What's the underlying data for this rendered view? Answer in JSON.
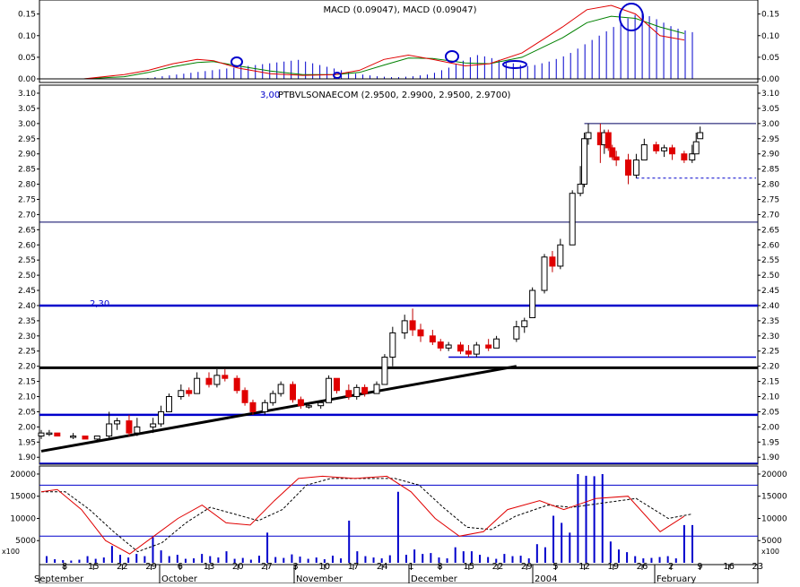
{
  "macd_panel": {
    "title": "MACD (0.09047), MACD (0.09047)",
    "axis_ticks": [
      "0.15",
      "0.10",
      "0.05",
      "0.00"
    ],
    "colors": {
      "macd_line": "#e00000",
      "signal_line": "#008000",
      "histogram": "#0000cc",
      "highlight": "#0000cc"
    }
  },
  "price_panel": {
    "title": "PTBVLSONAECOM (2.9500, 2.9900, 2.9500, 2.9700)",
    "scale_note": "3,00",
    "level_label": "2,30",
    "axis_ticks": [
      "3.10",
      "3.05",
      "3.00",
      "2.95",
      "2.90",
      "2.85",
      "2.80",
      "2.75",
      "2.70",
      "2.65",
      "2.60",
      "2.55",
      "2.50",
      "2.45",
      "2.40",
      "2.35",
      "2.30",
      "2.25",
      "2.20",
      "2.15",
      "2.10",
      "2.05",
      "2.00",
      "1.95",
      "1.90"
    ],
    "colors": {
      "up_candle": "#ffffff",
      "down_candle": "#e00000",
      "support": "#0000cc",
      "trendline": "#000000",
      "thin_line": "#000060"
    }
  },
  "stoch_panel": {
    "axis_ticks": [
      "20000",
      "15000",
      "10000",
      "5000"
    ],
    "unit_label": "x100",
    "colors": {
      "k_line": "#e00000",
      "d_line": "#000000",
      "volume": "#0000cc",
      "guide": "#0000cc"
    }
  },
  "x_axis": {
    "day_labels": [
      "8",
      "15",
      "22",
      "29",
      "6",
      "13",
      "20",
      "27",
      "3",
      "10",
      "17",
      "24",
      "1",
      "8",
      "15",
      "22",
      "29",
      "5",
      "12",
      "19",
      "26",
      "2",
      "9",
      "16",
      "23"
    ],
    "month_labels": [
      "September",
      "October",
      "November",
      "December",
      "2004",
      "February"
    ]
  },
  "chart_data": {
    "type": "candlestick",
    "title": "PTBVLSONAECOM (2.9500, 2.9900, 2.9500, 2.9700)",
    "last_ohlc": {
      "open": 2.95,
      "high": 2.99,
      "low": 2.95,
      "close": 2.97
    },
    "ylim": [
      1.88,
      3.11
    ],
    "x_range": [
      "2003-09-01",
      "2004-02-27"
    ],
    "candles": [
      {
        "date": "2003-09-01",
        "o": 1.97,
        "h": 1.99,
        "l": 1.96,
        "c": 1.98
      },
      {
        "date": "2003-09-03",
        "o": 1.98,
        "h": 1.99,
        "l": 1.97,
        "c": 1.98
      },
      {
        "date": "2003-09-05",
        "o": 1.98,
        "h": 1.98,
        "l": 1.97,
        "c": 1.97
      },
      {
        "date": "2003-09-09",
        "o": 1.97,
        "h": 1.98,
        "l": 1.96,
        "c": 1.97
      },
      {
        "date": "2003-09-12",
        "o": 1.97,
        "h": 1.97,
        "l": 1.96,
        "c": 1.96
      },
      {
        "date": "2003-09-15",
        "o": 1.96,
        "h": 1.97,
        "l": 1.95,
        "c": 1.97
      },
      {
        "date": "2003-09-18",
        "o": 1.97,
        "h": 2.05,
        "l": 1.96,
        "c": 2.01
      },
      {
        "date": "2003-09-20",
        "o": 2.01,
        "h": 2.03,
        "l": 1.99,
        "c": 2.02
      },
      {
        "date": "2003-09-23",
        "o": 2.02,
        "h": 2.04,
        "l": 1.97,
        "c": 1.98
      },
      {
        "date": "2003-09-25",
        "o": 1.98,
        "h": 2.03,
        "l": 1.97,
        "c": 2.0
      },
      {
        "date": "2003-09-29",
        "o": 2.0,
        "h": 2.03,
        "l": 1.98,
        "c": 2.01
      },
      {
        "date": "2003-10-01",
        "o": 2.01,
        "h": 2.07,
        "l": 2.0,
        "c": 2.05
      },
      {
        "date": "2003-10-03",
        "o": 2.05,
        "h": 2.11,
        "l": 2.05,
        "c": 2.1
      },
      {
        "date": "2003-10-06",
        "o": 2.1,
        "h": 2.14,
        "l": 2.09,
        "c": 2.12
      },
      {
        "date": "2003-10-08",
        "o": 2.12,
        "h": 2.13,
        "l": 2.1,
        "c": 2.11
      },
      {
        "date": "2003-10-10",
        "o": 2.11,
        "h": 2.18,
        "l": 2.11,
        "c": 2.16
      },
      {
        "date": "2003-10-13",
        "o": 2.16,
        "h": 2.18,
        "l": 2.13,
        "c": 2.14
      },
      {
        "date": "2003-10-15",
        "o": 2.14,
        "h": 2.19,
        "l": 2.13,
        "c": 2.17
      },
      {
        "date": "2003-10-17",
        "o": 2.17,
        "h": 2.19,
        "l": 2.15,
        "c": 2.16
      },
      {
        "date": "2003-10-20",
        "o": 2.16,
        "h": 2.17,
        "l": 2.11,
        "c": 2.12
      },
      {
        "date": "2003-10-22",
        "o": 2.12,
        "h": 2.13,
        "l": 2.07,
        "c": 2.08
      },
      {
        "date": "2003-10-24",
        "o": 2.08,
        "h": 2.09,
        "l": 2.04,
        "c": 2.05
      },
      {
        "date": "2003-10-27",
        "o": 2.05,
        "h": 2.09,
        "l": 2.04,
        "c": 2.08
      },
      {
        "date": "2003-10-29",
        "o": 2.08,
        "h": 2.12,
        "l": 2.07,
        "c": 2.11
      },
      {
        "date": "2003-10-31",
        "o": 2.11,
        "h": 2.15,
        "l": 2.1,
        "c": 2.14
      },
      {
        "date": "2003-11-03",
        "o": 2.14,
        "h": 2.15,
        "l": 2.08,
        "c": 2.09
      },
      {
        "date": "2003-11-05",
        "o": 2.09,
        "h": 2.1,
        "l": 2.06,
        "c": 2.07
      },
      {
        "date": "2003-11-07",
        "o": 2.07,
        "h": 2.08,
        "l": 2.06,
        "c": 2.07
      },
      {
        "date": "2003-11-10",
        "o": 2.07,
        "h": 2.08,
        "l": 2.06,
        "c": 2.08
      },
      {
        "date": "2003-11-12",
        "o": 2.08,
        "h": 2.17,
        "l": 2.08,
        "c": 2.16
      },
      {
        "date": "2003-11-14",
        "o": 2.16,
        "h": 2.16,
        "l": 2.11,
        "c": 2.12
      },
      {
        "date": "2003-11-17",
        "o": 2.12,
        "h": 2.14,
        "l": 2.09,
        "c": 2.1
      },
      {
        "date": "2003-11-19",
        "o": 2.1,
        "h": 2.14,
        "l": 2.09,
        "c": 2.13
      },
      {
        "date": "2003-11-21",
        "o": 2.13,
        "h": 2.14,
        "l": 2.1,
        "c": 2.11
      },
      {
        "date": "2003-11-24",
        "o": 2.11,
        "h": 2.15,
        "l": 2.11,
        "c": 2.14
      },
      {
        "date": "2003-11-26",
        "o": 2.14,
        "h": 2.24,
        "l": 2.14,
        "c": 2.23
      },
      {
        "date": "2003-11-28",
        "o": 2.23,
        "h": 2.33,
        "l": 2.2,
        "c": 2.31
      },
      {
        "date": "2003-12-01",
        "o": 2.31,
        "h": 2.37,
        "l": 2.29,
        "c": 2.35
      },
      {
        "date": "2003-12-03",
        "o": 2.35,
        "h": 2.39,
        "l": 2.3,
        "c": 2.32
      },
      {
        "date": "2003-12-05",
        "o": 2.32,
        "h": 2.34,
        "l": 2.28,
        "c": 2.3
      },
      {
        "date": "2003-12-08",
        "o": 2.3,
        "h": 2.32,
        "l": 2.27,
        "c": 2.28
      },
      {
        "date": "2003-12-10",
        "o": 2.28,
        "h": 2.29,
        "l": 2.25,
        "c": 2.26
      },
      {
        "date": "2003-12-12",
        "o": 2.26,
        "h": 2.28,
        "l": 2.25,
        "c": 2.27
      },
      {
        "date": "2003-12-15",
        "o": 2.27,
        "h": 2.28,
        "l": 2.24,
        "c": 2.25
      },
      {
        "date": "2003-12-17",
        "o": 2.25,
        "h": 2.27,
        "l": 2.23,
        "c": 2.24
      },
      {
        "date": "2003-12-19",
        "o": 2.24,
        "h": 2.28,
        "l": 2.23,
        "c": 2.27
      },
      {
        "date": "2003-12-22",
        "o": 2.27,
        "h": 2.29,
        "l": 2.25,
        "c": 2.26
      },
      {
        "date": "2003-12-24",
        "o": 2.26,
        "h": 2.3,
        "l": 2.26,
        "c": 2.29
      },
      {
        "date": "2003-12-29",
        "o": 2.29,
        "h": 2.35,
        "l": 2.28,
        "c": 2.33
      },
      {
        "date": "2003-12-31",
        "o": 2.33,
        "h": 2.36,
        "l": 2.31,
        "c": 2.35
      },
      {
        "date": "2004-01-02",
        "o": 2.36,
        "h": 2.46,
        "l": 2.36,
        "c": 2.45
      },
      {
        "date": "2004-01-05",
        "o": 2.45,
        "h": 2.57,
        "l": 2.44,
        "c": 2.56
      },
      {
        "date": "2004-01-07",
        "o": 2.56,
        "h": 2.58,
        "l": 2.51,
        "c": 2.53
      },
      {
        "date": "2004-01-09",
        "o": 2.53,
        "h": 2.62,
        "l": 2.52,
        "c": 2.6
      },
      {
        "date": "2004-01-12",
        "o": 2.6,
        "h": 2.78,
        "l": 2.6,
        "c": 2.77
      },
      {
        "date": "2004-01-14",
        "o": 2.77,
        "h": 2.86,
        "l": 2.76,
        "c": 2.8
      },
      {
        "date": "2004-01-15",
        "o": 2.8,
        "h": 2.97,
        "l": 2.79,
        "c": 2.95
      },
      {
        "date": "2004-01-16",
        "o": 2.95,
        "h": 3.0,
        "l": 2.93,
        "c": 2.97
      },
      {
        "date": "2004-01-19",
        "o": 2.97,
        "h": 3.0,
        "l": 2.87,
        "c": 2.93
      },
      {
        "date": "2004-01-20",
        "o": 2.93,
        "h": 2.98,
        "l": 2.9,
        "c": 2.97
      },
      {
        "date": "2004-01-21",
        "o": 2.97,
        "h": 2.98,
        "l": 2.91,
        "c": 2.92
      },
      {
        "date": "2004-01-22",
        "o": 2.92,
        "h": 2.93,
        "l": 2.88,
        "c": 2.89
      },
      {
        "date": "2004-01-23",
        "o": 2.89,
        "h": 2.91,
        "l": 2.86,
        "c": 2.88
      },
      {
        "date": "2004-01-26",
        "o": 2.88,
        "h": 2.9,
        "l": 2.8,
        "c": 2.83
      },
      {
        "date": "2004-01-28",
        "o": 2.83,
        "h": 2.9,
        "l": 2.82,
        "c": 2.88
      },
      {
        "date": "2004-01-30",
        "o": 2.88,
        "h": 2.95,
        "l": 2.88,
        "c": 2.93
      },
      {
        "date": "2004-02-02",
        "o": 2.93,
        "h": 2.94,
        "l": 2.9,
        "c": 2.91
      },
      {
        "date": "2004-02-04",
        "o": 2.91,
        "h": 2.93,
        "l": 2.89,
        "c": 2.92
      },
      {
        "date": "2004-02-06",
        "o": 2.92,
        "h": 2.93,
        "l": 2.88,
        "c": 2.9
      },
      {
        "date": "2004-02-09",
        "o": 2.9,
        "h": 2.91,
        "l": 2.87,
        "c": 2.88
      },
      {
        "date": "2004-02-11",
        "o": 2.88,
        "h": 2.93,
        "l": 2.87,
        "c": 2.9
      },
      {
        "date": "2004-02-12",
        "o": 2.9,
        "h": 2.97,
        "l": 2.9,
        "c": 2.94
      },
      {
        "date": "2004-02-13",
        "o": 2.95,
        "h": 2.99,
        "l": 2.95,
        "c": 2.97
      }
    ],
    "horizontal_lines": [
      {
        "value": 3.0,
        "from": "2004-01-15",
        "to": "2004-02-27",
        "style": "thin"
      },
      {
        "value": 2.82,
        "from": "2004-01-28",
        "to": "2004-02-27",
        "style": "dashed"
      },
      {
        "value": 2.675,
        "style": "thin"
      },
      {
        "value": 2.4,
        "style": "thick-blue"
      },
      {
        "value": 2.23,
        "from": "2003-12-12",
        "to": "2004-02-27",
        "style": "blue"
      },
      {
        "value": 2.195,
        "style": "thick-black"
      },
      {
        "value": 2.04,
        "style": "thick-blue"
      },
      {
        "value": 1.88,
        "style": "blue"
      }
    ],
    "trendline": {
      "from": {
        "date": "2003-09-01",
        "value": 1.92
      },
      "to": {
        "date": "2003-12-29",
        "value": 2.2
      }
    },
    "macd": {
      "ylim": [
        0,
        0.17
      ],
      "macd_line": [
        [
          0,
          0.0
        ],
        [
          10,
          0.0
        ],
        [
          20,
          0.01
        ],
        [
          26,
          0.02
        ],
        [
          32,
          0.035
        ],
        [
          38,
          0.045
        ],
        [
          42,
          0.042
        ],
        [
          48,
          0.025
        ],
        [
          56,
          0.012
        ],
        [
          64,
          0.008
        ],
        [
          72,
          0.01
        ],
        [
          78,
          0.02
        ],
        [
          84,
          0.045
        ],
        [
          90,
          0.055
        ],
        [
          96,
          0.045
        ],
        [
          104,
          0.03
        ],
        [
          110,
          0.035
        ],
        [
          118,
          0.06
        ],
        [
          128,
          0.12
        ],
        [
          134,
          0.16
        ],
        [
          140,
          0.17
        ],
        [
          146,
          0.15
        ],
        [
          152,
          0.1
        ],
        [
          158,
          0.09
        ]
      ],
      "signal_line": [
        [
          0,
          0.0
        ],
        [
          10,
          0.0
        ],
        [
          20,
          0.005
        ],
        [
          26,
          0.015
        ],
        [
          32,
          0.028
        ],
        [
          38,
          0.038
        ],
        [
          42,
          0.04
        ],
        [
          48,
          0.03
        ],
        [
          56,
          0.018
        ],
        [
          64,
          0.01
        ],
        [
          72,
          0.01
        ],
        [
          78,
          0.015
        ],
        [
          84,
          0.032
        ],
        [
          90,
          0.048
        ],
        [
          96,
          0.047
        ],
        [
          104,
          0.037
        ],
        [
          110,
          0.035
        ],
        [
          118,
          0.05
        ],
        [
          128,
          0.095
        ],
        [
          134,
          0.13
        ],
        [
          140,
          0.145
        ],
        [
          146,
          0.14
        ],
        [
          152,
          0.12
        ],
        [
          158,
          0.105
        ]
      ],
      "histogram": [
        0.0,
        0.0,
        0.0,
        0.0,
        0.0,
        0.002,
        0.004,
        0.006,
        0.008,
        0.01,
        0.012,
        0.014,
        0.016,
        0.018,
        0.02,
        0.022,
        0.024,
        0.026,
        0.028,
        0.03,
        0.032,
        0.034,
        0.036,
        0.038,
        0.04,
        0.042,
        0.044,
        0.04,
        0.036,
        0.032,
        0.028,
        0.024,
        0.02,
        0.016,
        0.012,
        0.01,
        0.008,
        0.006,
        0.005,
        0.004,
        0.004,
        0.005,
        0.006,
        0.008,
        0.01,
        0.014,
        0.02,
        0.026,
        0.034,
        0.042,
        0.05,
        0.055,
        0.052,
        0.048,
        0.044,
        0.04,
        0.036,
        0.032,
        0.03,
        0.032,
        0.036,
        0.04,
        0.046,
        0.052,
        0.06,
        0.07,
        0.08,
        0.09,
        0.1,
        0.11,
        0.12,
        0.13,
        0.14,
        0.148,
        0.15,
        0.145,
        0.138,
        0.13,
        0.122,
        0.116,
        0.112,
        0.108
      ]
    },
    "stochastic": {
      "ylim": [
        0,
        21000
      ],
      "k_line": [
        [
          0,
          16000
        ],
        [
          4,
          16500
        ],
        [
          10,
          12000
        ],
        [
          16,
          5000
        ],
        [
          22,
          2000
        ],
        [
          28,
          6000
        ],
        [
          34,
          10000
        ],
        [
          40,
          13000
        ],
        [
          46,
          9000
        ],
        [
          52,
          8500
        ],
        [
          58,
          14000
        ],
        [
          64,
          19000
        ],
        [
          70,
          19500
        ],
        [
          78,
          19000
        ],
        [
          86,
          19500
        ],
        [
          92,
          16000
        ],
        [
          98,
          10000
        ],
        [
          104,
          6000
        ],
        [
          110,
          7000
        ],
        [
          116,
          12000
        ],
        [
          124,
          14000
        ],
        [
          130,
          12000
        ],
        [
          138,
          14500
        ],
        [
          146,
          15000
        ],
        [
          154,
          7000
        ],
        [
          160,
          10500
        ]
      ],
      "d_line": [
        [
          0,
          16000
        ],
        [
          6,
          16000
        ],
        [
          12,
          12000
        ],
        [
          18,
          7000
        ],
        [
          24,
          2500
        ],
        [
          30,
          4500
        ],
        [
          36,
          9000
        ],
        [
          42,
          12500
        ],
        [
          48,
          11000
        ],
        [
          54,
          9500
        ],
        [
          60,
          12000
        ],
        [
          66,
          17500
        ],
        [
          72,
          19000
        ],
        [
          80,
          19000
        ],
        [
          88,
          19000
        ],
        [
          94,
          17500
        ],
        [
          100,
          12500
        ],
        [
          106,
          8000
        ],
        [
          112,
          7500
        ],
        [
          118,
          10500
        ],
        [
          126,
          13000
        ],
        [
          132,
          12500
        ],
        [
          140,
          13500
        ],
        [
          148,
          14500
        ],
        [
          156,
          10000
        ],
        [
          162,
          11000
        ]
      ],
      "volume": [
        1500,
        800,
        600,
        500,
        700,
        1500,
        900,
        1200,
        3800,
        1800,
        1200,
        2000,
        1500,
        5800,
        2800,
        1500,
        1800,
        900,
        1000,
        2000,
        1500,
        1200,
        2600,
        900,
        1100,
        700,
        1600,
        6800,
        1300,
        1100,
        1900,
        1400,
        900,
        1200,
        800,
        1600,
        1000,
        9500,
        2600,
        1500,
        1200,
        1000,
        1700,
        16000,
        1800,
        3000,
        2000,
        2200,
        1200,
        1000,
        3500,
        2600,
        2600,
        1800,
        1300,
        900,
        2000,
        1500,
        1600,
        1000,
        4200,
        3500,
        10600,
        9000,
        6800,
        20000,
        19600,
        19500,
        20000,
        4800,
        3000,
        2400,
        1500,
        1000,
        1100,
        1300,
        1500,
        1000,
        8500,
        8500
      ]
    }
  }
}
